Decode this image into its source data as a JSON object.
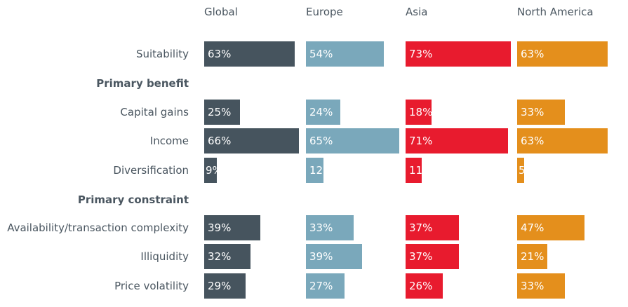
{
  "chart_data": {
    "type": "bar",
    "orientation": "horizontal",
    "title": "",
    "xlabel": "",
    "ylabel": "",
    "xlim": [
      0,
      100
    ],
    "grid": false,
    "value_format": "{v}%",
    "series": [
      {
        "name": "Global",
        "color": "#46545e",
        "values": [
          63,
          null,
          25,
          66,
          9,
          null,
          39,
          32,
          29
        ]
      },
      {
        "name": "Europe",
        "color": "#7aa8bb",
        "values": [
          54,
          null,
          24,
          65,
          12,
          null,
          33,
          39,
          27
        ]
      },
      {
        "name": "Asia",
        "color": "#e81b2e",
        "values": [
          73,
          null,
          18,
          71,
          11,
          null,
          37,
          37,
          26
        ]
      },
      {
        "name": "North America",
        "color": "#e48f1c",
        "values": [
          63,
          null,
          33,
          63,
          5,
          null,
          47,
          21,
          33
        ]
      }
    ],
    "categories": [
      {
        "label": "Suitability",
        "section": false
      },
      {
        "label": "Primary benefit",
        "section": true
      },
      {
        "label": "Capital gains",
        "section": false
      },
      {
        "label": "Income",
        "section": false
      },
      {
        "label": "Diversification",
        "section": false
      },
      {
        "label": "Primary constraint",
        "section": true
      },
      {
        "label": "Availability/transaction complexity",
        "section": false
      },
      {
        "label": "Illiquidity",
        "section": false
      },
      {
        "label": "Price volatility",
        "section": false
      }
    ]
  }
}
